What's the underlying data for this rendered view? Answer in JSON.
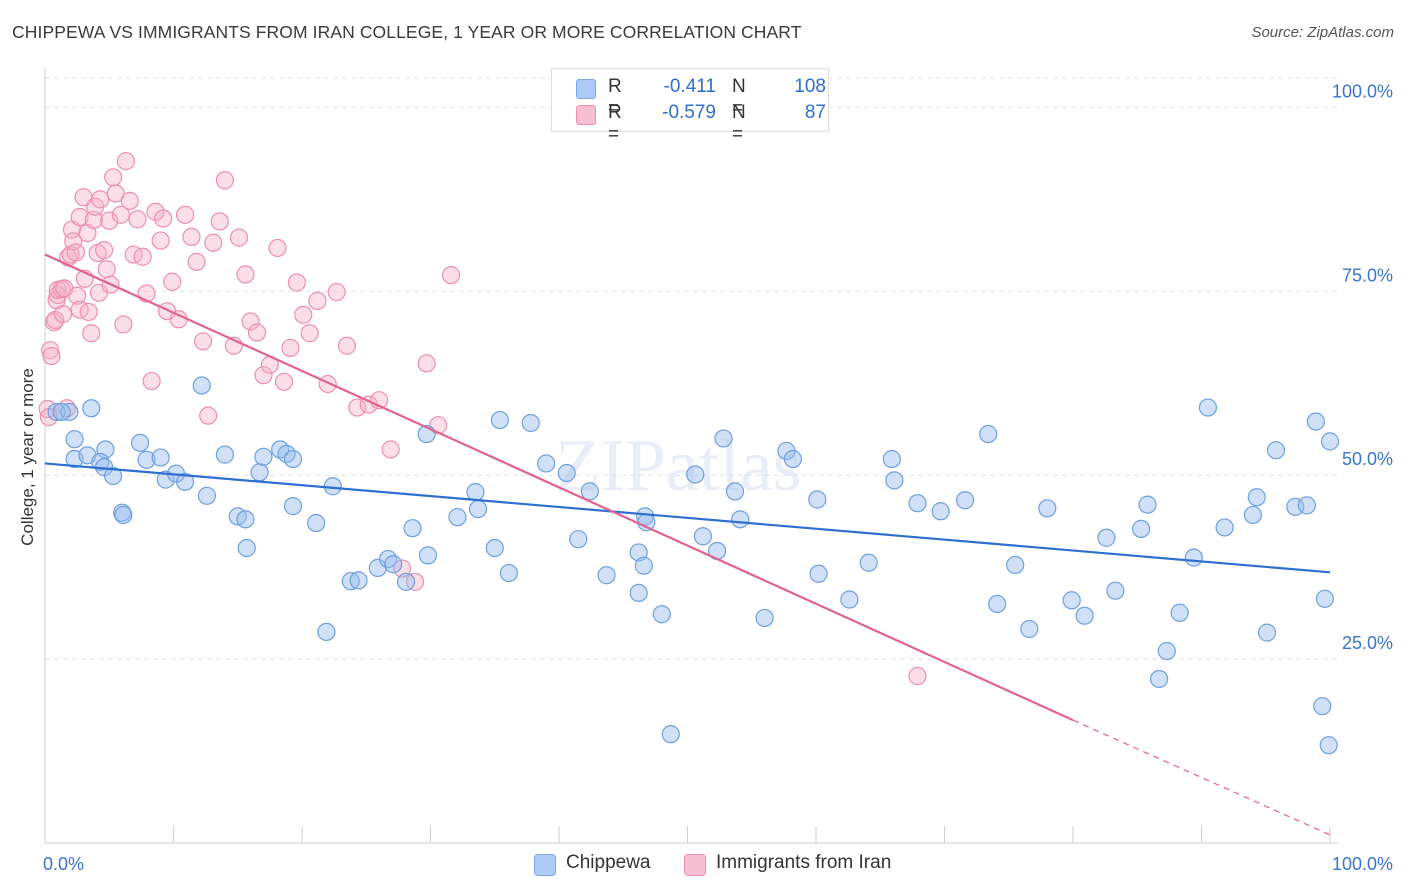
{
  "title": "CHIPPEWA VS IMMIGRANTS FROM IRAN COLLEGE, 1 YEAR OR MORE CORRELATION CHART",
  "source": "Source: ZipAtlas.com",
  "watermark": "ZIPatlas",
  "legend": {
    "rows": [
      {
        "r_label": "R =",
        "r_value": "-0.411",
        "n_label": "N =",
        "n_value": "108",
        "color": "#aecbf5",
        "border": "#7aa7e6"
      },
      {
        "r_label": "R =",
        "r_value": "-0.579",
        "n_label": "N =",
        "n_value": "87",
        "color": "#f6c0d2",
        "border": "#ec90b0"
      }
    ]
  },
  "bottom_legend": [
    {
      "label": "Chippewa",
      "color": "#aecbf5",
      "border": "#7aa7e6"
    },
    {
      "label": "Immigrants from Iran",
      "color": "#f6c0d2",
      "border": "#ec90b0"
    }
  ],
  "colors": {
    "blue_fill": "rgba(150,188,238,0.45)",
    "blue_stroke": "#6e9fe0",
    "blue_line": "#2f6fd0",
    "pink_fill": "rgba(246,176,200,0.42)",
    "pink_stroke": "#ec8fb0",
    "pink_line": "#e0628e",
    "axis_text": "#3a74cc",
    "grid": "#e2e2e2"
  },
  "chart_data": {
    "type": "scatter",
    "title": "CHIPPEWA VS IMMIGRANTS FROM IRAN COLLEGE, 1 YEAR OR MORE CORRELATION CHART",
    "xlabel": "",
    "ylabel": "College, 1 year or more",
    "xlim": [
      0,
      100
    ],
    "ylim": [
      0,
      104
    ],
    "x_tick_labels": [
      "0.0%",
      "100.0%"
    ],
    "y_ticks": [
      25,
      50,
      75,
      100
    ],
    "y_tick_labels": [
      "25.0%",
      "50.0%",
      "75.0%",
      "100.0%"
    ],
    "grid": true,
    "legend_position": "top-center",
    "series": [
      {
        "name": "Chippewa",
        "trend": {
          "x": [
            0,
            100
          ],
          "y": [
            51.6,
            36.8
          ]
        },
        "points": [
          [
            0.9,
            58.6
          ],
          [
            1.9,
            58.6
          ],
          [
            1.3,
            58.6
          ],
          [
            3.6,
            59.1
          ],
          [
            2.3,
            54.9
          ],
          [
            2.3,
            52.2
          ],
          [
            4.7,
            53.5
          ],
          [
            3.3,
            52.7
          ],
          [
            4.3,
            51.8
          ],
          [
            4.6,
            51.1
          ],
          [
            5.3,
            49.9
          ],
          [
            6.0,
            44.9
          ],
          [
            6.1,
            44.6
          ],
          [
            7.4,
            54.4
          ],
          [
            7.9,
            52.1
          ],
          [
            9.0,
            52.4
          ],
          [
            9.4,
            49.4
          ],
          [
            10.2,
            50.2
          ],
          [
            10.9,
            49.1
          ],
          [
            12.2,
            62.2
          ],
          [
            12.6,
            47.2
          ],
          [
            14.0,
            52.8
          ],
          [
            15.0,
            44.4
          ],
          [
            15.6,
            44.0
          ],
          [
            15.7,
            40.1
          ],
          [
            16.7,
            50.4
          ],
          [
            17.0,
            52.5
          ],
          [
            18.3,
            53.5
          ],
          [
            18.8,
            52.9
          ],
          [
            19.3,
            52.2
          ],
          [
            19.3,
            45.8
          ],
          [
            21.1,
            43.5
          ],
          [
            21.9,
            28.7
          ],
          [
            22.4,
            48.5
          ],
          [
            23.8,
            35.6
          ],
          [
            24.4,
            35.7
          ],
          [
            25.9,
            37.4
          ],
          [
            26.7,
            38.6
          ],
          [
            27.1,
            37.9
          ],
          [
            28.1,
            35.5
          ],
          [
            28.6,
            42.8
          ],
          [
            29.7,
            55.6
          ],
          [
            29.8,
            39.1
          ],
          [
            32.1,
            44.3
          ],
          [
            33.5,
            47.7
          ],
          [
            33.7,
            45.4
          ],
          [
            35.0,
            40.1
          ],
          [
            35.4,
            57.5
          ],
          [
            36.1,
            36.7
          ],
          [
            37.8,
            57.1
          ],
          [
            39.0,
            51.6
          ],
          [
            40.6,
            50.3
          ],
          [
            41.5,
            41.3
          ],
          [
            42.4,
            47.8
          ],
          [
            43.7,
            36.4
          ],
          [
            46.2,
            39.5
          ],
          [
            46.7,
            44.4
          ],
          [
            46.2,
            34.0
          ],
          [
            46.6,
            37.7
          ],
          [
            46.8,
            43.6
          ],
          [
            48.0,
            31.1
          ],
          [
            48.7,
            14.8
          ],
          [
            50.6,
            50.1
          ],
          [
            51.2,
            41.7
          ],
          [
            52.3,
            39.7
          ],
          [
            52.8,
            55.0
          ],
          [
            53.7,
            47.8
          ],
          [
            54.1,
            44.0
          ],
          [
            56.0,
            30.6
          ],
          [
            57.7,
            53.3
          ],
          [
            58.2,
            52.2
          ],
          [
            60.1,
            46.7
          ],
          [
            60.2,
            36.6
          ],
          [
            62.6,
            33.1
          ],
          [
            64.1,
            38.1
          ],
          [
            65.9,
            52.2
          ],
          [
            66.1,
            49.3
          ],
          [
            67.9,
            46.2
          ],
          [
            69.7,
            45.1
          ],
          [
            71.6,
            46.6
          ],
          [
            73.4,
            55.6
          ],
          [
            74.1,
            32.5
          ],
          [
            75.5,
            37.8
          ],
          [
            76.6,
            29.1
          ],
          [
            78.0,
            45.5
          ],
          [
            79.9,
            33.0
          ],
          [
            80.9,
            30.9
          ],
          [
            82.6,
            41.5
          ],
          [
            83.3,
            34.3
          ],
          [
            85.3,
            42.7
          ],
          [
            85.8,
            46.0
          ],
          [
            86.7,
            22.3
          ],
          [
            87.3,
            26.1
          ],
          [
            88.3,
            31.3
          ],
          [
            89.4,
            38.8
          ],
          [
            90.5,
            59.2
          ],
          [
            91.8,
            42.9
          ],
          [
            94.0,
            44.6
          ],
          [
            94.3,
            47.0
          ],
          [
            95.1,
            28.6
          ],
          [
            95.8,
            53.4
          ],
          [
            97.3,
            45.7
          ],
          [
            98.2,
            45.9
          ],
          [
            98.9,
            57.3
          ],
          [
            99.4,
            18.6
          ],
          [
            99.9,
            13.3
          ],
          [
            99.6,
            33.2
          ],
          [
            100.0,
            54.6
          ]
        ]
      },
      {
        "name": "Immigrants from Iran",
        "trend": {
          "x": [
            0,
            80
          ],
          "y": [
            80.0,
            16.7
          ],
          "dashed_to": {
            "x": 100,
            "y": 1.1
          }
        },
        "points": [
          [
            0.2,
            59.0
          ],
          [
            0.3,
            57.9
          ],
          [
            0.4,
            67.0
          ],
          [
            0.5,
            66.2
          ],
          [
            0.7,
            70.8
          ],
          [
            0.8,
            71.1
          ],
          [
            0.9,
            73.8
          ],
          [
            1.0,
            74.5
          ],
          [
            1.0,
            75.2
          ],
          [
            1.3,
            75.3
          ],
          [
            1.4,
            71.9
          ],
          [
            1.5,
            75.4
          ],
          [
            1.7,
            59.1
          ],
          [
            1.8,
            79.6
          ],
          [
            2.0,
            80.0
          ],
          [
            2.1,
            83.4
          ],
          [
            2.2,
            81.8
          ],
          [
            2.4,
            80.3
          ],
          [
            2.5,
            74.4
          ],
          [
            2.7,
            72.5
          ],
          [
            2.7,
            85.1
          ],
          [
            3.0,
            87.8
          ],
          [
            3.1,
            76.7
          ],
          [
            3.3,
            82.9
          ],
          [
            3.4,
            72.2
          ],
          [
            3.6,
            69.3
          ],
          [
            3.8,
            84.7
          ],
          [
            3.9,
            86.5
          ],
          [
            4.1,
            80.2
          ],
          [
            4.2,
            74.8
          ],
          [
            4.3,
            87.5
          ],
          [
            4.6,
            80.6
          ],
          [
            4.8,
            78.0
          ],
          [
            5.0,
            84.6
          ],
          [
            5.1,
            75.9
          ],
          [
            5.3,
            90.5
          ],
          [
            5.5,
            88.3
          ],
          [
            5.9,
            85.4
          ],
          [
            6.1,
            70.5
          ],
          [
            6.3,
            92.7
          ],
          [
            6.6,
            87.3
          ],
          [
            6.9,
            80.0
          ],
          [
            7.2,
            84.8
          ],
          [
            7.6,
            79.7
          ],
          [
            7.9,
            74.7
          ],
          [
            8.3,
            62.8
          ],
          [
            8.6,
            85.8
          ],
          [
            9.0,
            81.9
          ],
          [
            9.2,
            84.9
          ],
          [
            9.5,
            72.3
          ],
          [
            9.9,
            76.3
          ],
          [
            10.4,
            71.2
          ],
          [
            10.9,
            85.4
          ],
          [
            11.4,
            82.4
          ],
          [
            11.8,
            79.0
          ],
          [
            12.3,
            68.2
          ],
          [
            12.7,
            58.1
          ],
          [
            13.1,
            81.6
          ],
          [
            13.6,
            84.5
          ],
          [
            14.0,
            90.1
          ],
          [
            14.7,
            67.6
          ],
          [
            15.1,
            82.3
          ],
          [
            15.6,
            77.3
          ],
          [
            16.0,
            70.9
          ],
          [
            16.5,
            69.4
          ],
          [
            17.0,
            63.6
          ],
          [
            17.5,
            65.0
          ],
          [
            18.1,
            80.9
          ],
          [
            18.6,
            62.7
          ],
          [
            19.1,
            67.3
          ],
          [
            19.6,
            76.2
          ],
          [
            20.1,
            71.8
          ],
          [
            20.6,
            69.3
          ],
          [
            21.2,
            73.7
          ],
          [
            22.0,
            62.4
          ],
          [
            22.7,
            74.9
          ],
          [
            23.5,
            67.6
          ],
          [
            24.3,
            59.2
          ],
          [
            25.2,
            59.6
          ],
          [
            26.0,
            60.2
          ],
          [
            26.9,
            53.5
          ],
          [
            27.8,
            37.3
          ],
          [
            28.8,
            35.5
          ],
          [
            29.7,
            65.2
          ],
          [
            30.6,
            56.8
          ],
          [
            31.6,
            77.2
          ],
          [
            67.9,
            22.7
          ]
        ]
      }
    ]
  }
}
